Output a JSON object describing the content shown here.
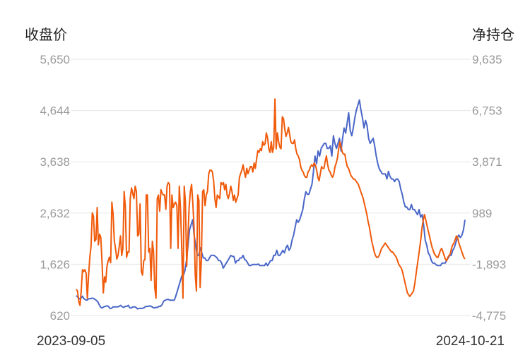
{
  "chart_data": {
    "type": "line",
    "left_axis_title": "收盘价",
    "right_axis_title": "净持仓",
    "x_labels": [
      "2023-09-05",
      "2024-10-21"
    ],
    "left_axis": {
      "ylim": [
        620,
        5650
      ],
      "ticks": [
        "5,650",
        "4,644",
        "3,638",
        "2,632",
        "1,626",
        "620"
      ]
    },
    "right_axis": {
      "ylim": [
        -4775,
        9635
      ],
      "ticks": [
        "9,635",
        "6,753",
        "3,871",
        "989",
        "-1,893",
        "-4,775"
      ]
    },
    "grid": true,
    "series": [
      {
        "axis": "left",
        "color": "#4a67c8",
        "values": [
          1010,
          980,
          950,
          960,
          1000,
          950,
          930,
          920,
          950,
          950,
          960,
          960,
          940,
          920,
          890,
          830,
          780,
          770,
          790,
          800,
          810,
          800,
          760,
          760,
          790,
          790,
          790,
          790,
          800,
          820,
          790,
          780,
          800,
          800,
          820,
          770,
          770,
          790,
          790,
          780,
          750,
          760,
          760,
          760,
          770,
          790,
          800,
          800,
          810,
          800,
          780,
          770,
          780,
          780,
          800,
          800,
          830,
          900,
          920,
          930,
          940,
          920,
          920,
          920,
          920,
          1000,
          1100,
          1200,
          1300,
          1400,
          1410,
          1500,
          1700,
          2000,
          2300,
          2400,
          2500,
          2200,
          2000,
          1800,
          1800,
          1950,
          1850,
          1750,
          1750,
          1700,
          1700,
          1750,
          1800,
          1800,
          1800,
          1780,
          1750,
          1700,
          1700,
          1650,
          1550,
          1600,
          1650,
          1700,
          1750,
          1800,
          1780,
          1780,
          1650,
          1700,
          1700,
          1750,
          1750,
          1800,
          1720,
          1700,
          1650,
          1600,
          1600,
          1620,
          1620,
          1620,
          1620,
          1630,
          1600,
          1600,
          1600,
          1600,
          1650,
          1600,
          1650,
          1700,
          1700,
          1800,
          1800,
          1900,
          1800,
          1800,
          1850,
          1900,
          1850,
          1950,
          2000,
          1900,
          1950,
          2100,
          2200,
          2350,
          2500,
          2450,
          2500,
          2600,
          2700,
          2900,
          3050,
          3000,
          3000,
          3100,
          3200,
          3450,
          3750,
          3600,
          3850,
          3750,
          3900,
          3950,
          4000,
          4000,
          3900,
          3900,
          3950,
          3750,
          4150,
          4000,
          3900,
          4000,
          4100,
          3850,
          4100,
          4300,
          4200,
          4400,
          4600,
          4250,
          4150,
          4300,
          4500,
          4650,
          4750,
          4850,
          4650,
          4500,
          4300,
          4450,
          4350,
          4100,
          4000,
          4050,
          4100,
          3950,
          3750,
          3600,
          3500,
          3450,
          3400,
          3400,
          3400,
          3300,
          3450,
          3350,
          3300,
          3300,
          3250,
          3300,
          3300,
          3250,
          3100,
          3000,
          2850,
          2750,
          2750,
          2700,
          2700,
          2800,
          2700,
          2700,
          2650,
          2600,
          2700,
          2550,
          2600,
          2400,
          2100,
          2000,
          1850,
          1800,
          1700,
          1650,
          1650,
          1620,
          1600,
          1600,
          1600,
          1650,
          1650,
          1650,
          1700,
          1750,
          1800,
          1800,
          1900,
          1950,
          2050,
          2150,
          2200,
          2150,
          2200,
          2300,
          2500
        ]
      },
      {
        "axis": "right",
        "color": "#f05a0a",
        "values": [
          -3300,
          -3400,
          -4000,
          -4200,
          -3400,
          -2200,
          -2300,
          -2200,
          -2400,
          -3800,
          -2500,
          -1500,
          -900,
          1000,
          800,
          -600,
          -500,
          1300,
          -800,
          -200,
          -400,
          -1800,
          -3500,
          -2600,
          -2900,
          -2000,
          -1700,
          -1500,
          -1800,
          1600,
          900,
          -600,
          -1000,
          -1600,
          -1400,
          -900,
          -300,
          -1400,
          -1000,
          2200,
          1300,
          -1500,
          -1200,
          -1200,
          1800,
          2400,
          2100,
          1800,
          2500,
          2200,
          -300,
          -200,
          1500,
          -2300,
          -2500,
          -1700,
          -1600,
          2000,
          2000,
          -1200,
          -1000,
          -2800,
          -600,
          -1200,
          -3200,
          -3800,
          1800,
          2000,
          1100,
          2300,
          2100,
          2000,
          2000,
          1200,
          2500,
          2700,
          2600,
          -1000,
          2000,
          1300,
          1500,
          1600,
          1400,
          -1000,
          2500,
          1200,
          -1000,
          -3800,
          2500,
          1600,
          -2000,
          -400,
          1300,
          2200,
          2600,
          1600,
          200,
          -2500,
          -3400,
          2000,
          1700,
          -3200,
          -1600,
          2200,
          2300,
          1400,
          2000,
          2200,
          3200,
          3400,
          3400,
          3300,
          2800,
          1800,
          1300,
          2000,
          1900,
          1800,
          2700,
          2600,
          2700,
          2300,
          2600,
          2000,
          1800,
          2100,
          2500,
          2200,
          1700,
          2000,
          1600,
          1800,
          2000,
          3000,
          3200,
          3400,
          3700,
          3300,
          3000,
          3500,
          3200,
          3400,
          3600,
          3600,
          3300,
          3800,
          3500,
          4000,
          4500,
          4400,
          4600,
          4500,
          5000,
          4800,
          4900,
          5500,
          5200,
          4600,
          4400,
          5000,
          4400,
          4700,
          7400,
          4600,
          5500,
          5000,
          4700,
          4600,
          6400,
          6300,
          5700,
          5300,
          5500,
          5800,
          5400,
          5000,
          4900,
          4900,
          5100,
          4600,
          4300,
          4200,
          4000,
          3600,
          3400,
          3300,
          3100,
          3000,
          3000,
          3300,
          3400,
          3600,
          3700,
          3600,
          3800,
          3700,
          3400,
          3000,
          2800,
          3200,
          3600,
          3500,
          3500,
          3900,
          4200,
          3700,
          3400,
          3300,
          3100,
          3000,
          3200,
          3600,
          3800,
          4100,
          4600,
          5000,
          4700,
          4400,
          4300,
          4300,
          3900,
          3600,
          3500,
          3300,
          3100,
          3000,
          2900,
          2900,
          2800,
          2700,
          2600,
          2400,
          2200,
          2000,
          1800,
          1500,
          1200,
          900,
          500,
          200,
          -200,
          -600,
          -900,
          -1200,
          -1400,
          -1500,
          -1500,
          -1400,
          -1200,
          -1000,
          -900,
          -800,
          -700,
          -800,
          -900,
          -1000,
          -1100,
          -1200,
          -1200,
          -1300,
          -1400,
          -1500,
          -1700,
          -1900,
          -2000,
          -2100,
          -2300,
          -2600,
          -2900,
          -3200,
          -3500,
          -3600,
          -3700,
          -3600,
          -3500,
          -3400,
          -3000,
          -2500,
          -2000,
          -1500,
          -1000,
          -500,
          200,
          600,
          900,
          600,
          300,
          0,
          -300,
          -600,
          -900,
          -1100,
          -1300,
          -1400,
          -1500,
          -1500,
          -1300,
          -1100,
          -1000,
          -1200,
          -1400,
          -1600,
          -1700,
          -1500,
          -1400,
          -1300,
          -1000,
          -800,
          -700,
          -500,
          -300,
          -400,
          -700,
          -900,
          -1100,
          -1300,
          -1500,
          -1600
        ]
      }
    ]
  }
}
